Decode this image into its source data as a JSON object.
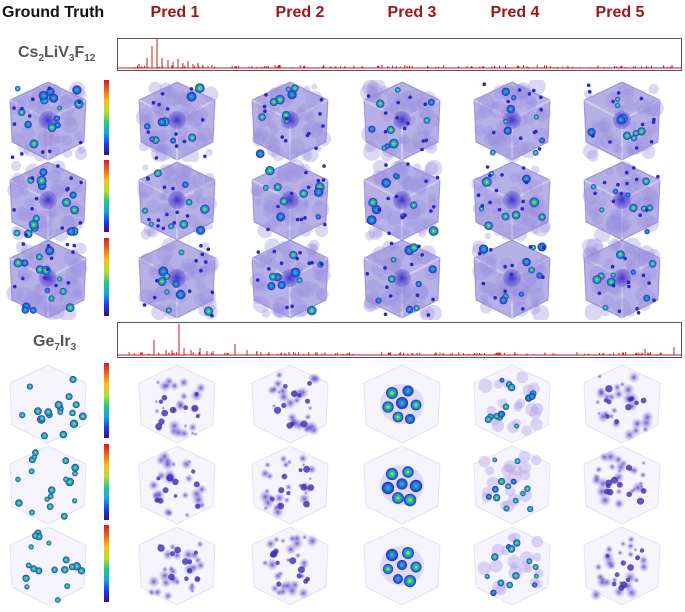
{
  "headers": {
    "ground_truth": "Ground Truth",
    "preds": [
      "Pred 1",
      "Pred 2",
      "Pred 3",
      "Pred 4",
      "Pred 5"
    ]
  },
  "materials": [
    {
      "name_parts": [
        "Cs",
        "2",
        "LiV",
        "3",
        "F",
        "12"
      ],
      "style": "cubic",
      "colors": {
        "spectrum": "#cc1b1b",
        "cloud": "#7b6fd2",
        "edge": "#3d36b8"
      }
    },
    {
      "name_parts": [
        "Ge",
        "7",
        "Ir",
        "3",
        "",
        ""
      ],
      "style": "sparse",
      "colors": {
        "spectrum": "#cc1b1b",
        "cloud": "#b8a8ec",
        "edge": "#3a30b0"
      }
    }
  ]
}
